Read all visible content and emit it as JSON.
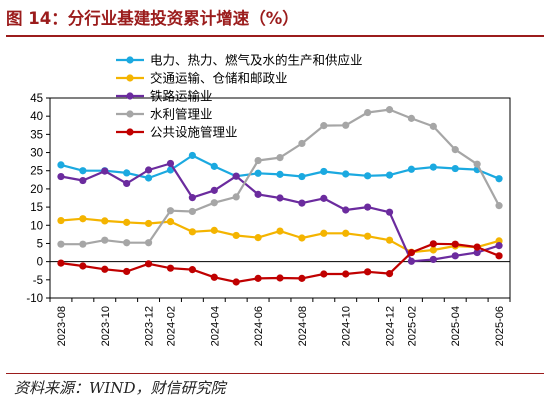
{
  "title": "图 14：分行业基建投资累计增速（%）",
  "source": "资料来源：WIND，财信研究院",
  "chart_data": {
    "type": "line",
    "x": [
      "2023-08",
      "2023-09",
      "2023-10",
      "2023-11",
      "2023-12",
      "2024-02",
      "2024-03",
      "2024-04",
      "2024-05",
      "2024-06",
      "2024-07",
      "2024-08",
      "2024-09",
      "2024-10",
      "2024-11",
      "2024-12",
      "2025-02",
      "2025-03",
      "2025-04",
      "2025-05",
      "2025-06"
    ],
    "x_tick_labels": [
      "2023-08",
      "2023-10",
      "2023-12",
      "2024-02",
      "2024-04",
      "2024-06",
      "2024-08",
      "2024-10",
      "2024-12",
      "2025-02",
      "2025-04",
      "2025-06"
    ],
    "ylim": [
      -10,
      45
    ],
    "yticks": [
      -10,
      -5,
      0,
      5,
      10,
      15,
      20,
      25,
      30,
      35,
      40,
      45
    ],
    "legend_position": "top-right",
    "series": [
      {
        "name": "电力、热力、燃气及水的生产和供应业",
        "color": "#1ba9e0",
        "values": [
          26.6,
          25.0,
          25.0,
          24.4,
          23.0,
          25.2,
          29.2,
          26.2,
          23.5,
          24.3,
          24.0,
          23.4,
          24.8,
          24.1,
          23.6,
          23.8,
          25.4,
          26.0,
          25.6,
          25.3,
          22.8
        ]
      },
      {
        "name": "交通运输、仓储和邮政业",
        "color": "#f4b400",
        "values": [
          11.3,
          11.8,
          11.2,
          10.8,
          10.5,
          11.0,
          8.2,
          8.6,
          7.2,
          6.6,
          8.4,
          6.5,
          7.8,
          7.8,
          7.0,
          5.9,
          2.6,
          3.2,
          4.3,
          4.0,
          5.7
        ]
      },
      {
        "name": "铁路运输业",
        "color": "#6b2b9e",
        "values": [
          23.4,
          22.3,
          24.9,
          21.5,
          25.2,
          27.0,
          17.6,
          19.6,
          23.5,
          18.5,
          17.5,
          16.1,
          17.4,
          14.2,
          15.0,
          13.6,
          0.1,
          0.6,
          1.6,
          2.5,
          4.4
        ]
      },
      {
        "name": "水利管理业",
        "color": "#a6a6a6",
        "values": [
          4.8,
          4.8,
          5.9,
          5.2,
          5.2,
          14.0,
          13.8,
          16.2,
          17.8,
          27.8,
          28.6,
          32.5,
          37.4,
          37.5,
          41.0,
          41.8,
          39.4,
          37.2,
          30.8,
          26.8,
          15.4
        ]
      },
      {
        "name": "公共设施管理业",
        "color": "#c00000",
        "values": [
          -0.4,
          -1.2,
          -2.1,
          -2.7,
          -0.6,
          -1.8,
          -2.2,
          -4.3,
          -5.6,
          -4.6,
          -4.5,
          -4.6,
          -3.4,
          -3.4,
          -2.8,
          -3.3,
          2.5,
          4.9,
          4.8,
          4.0,
          1.6
        ]
      }
    ]
  }
}
